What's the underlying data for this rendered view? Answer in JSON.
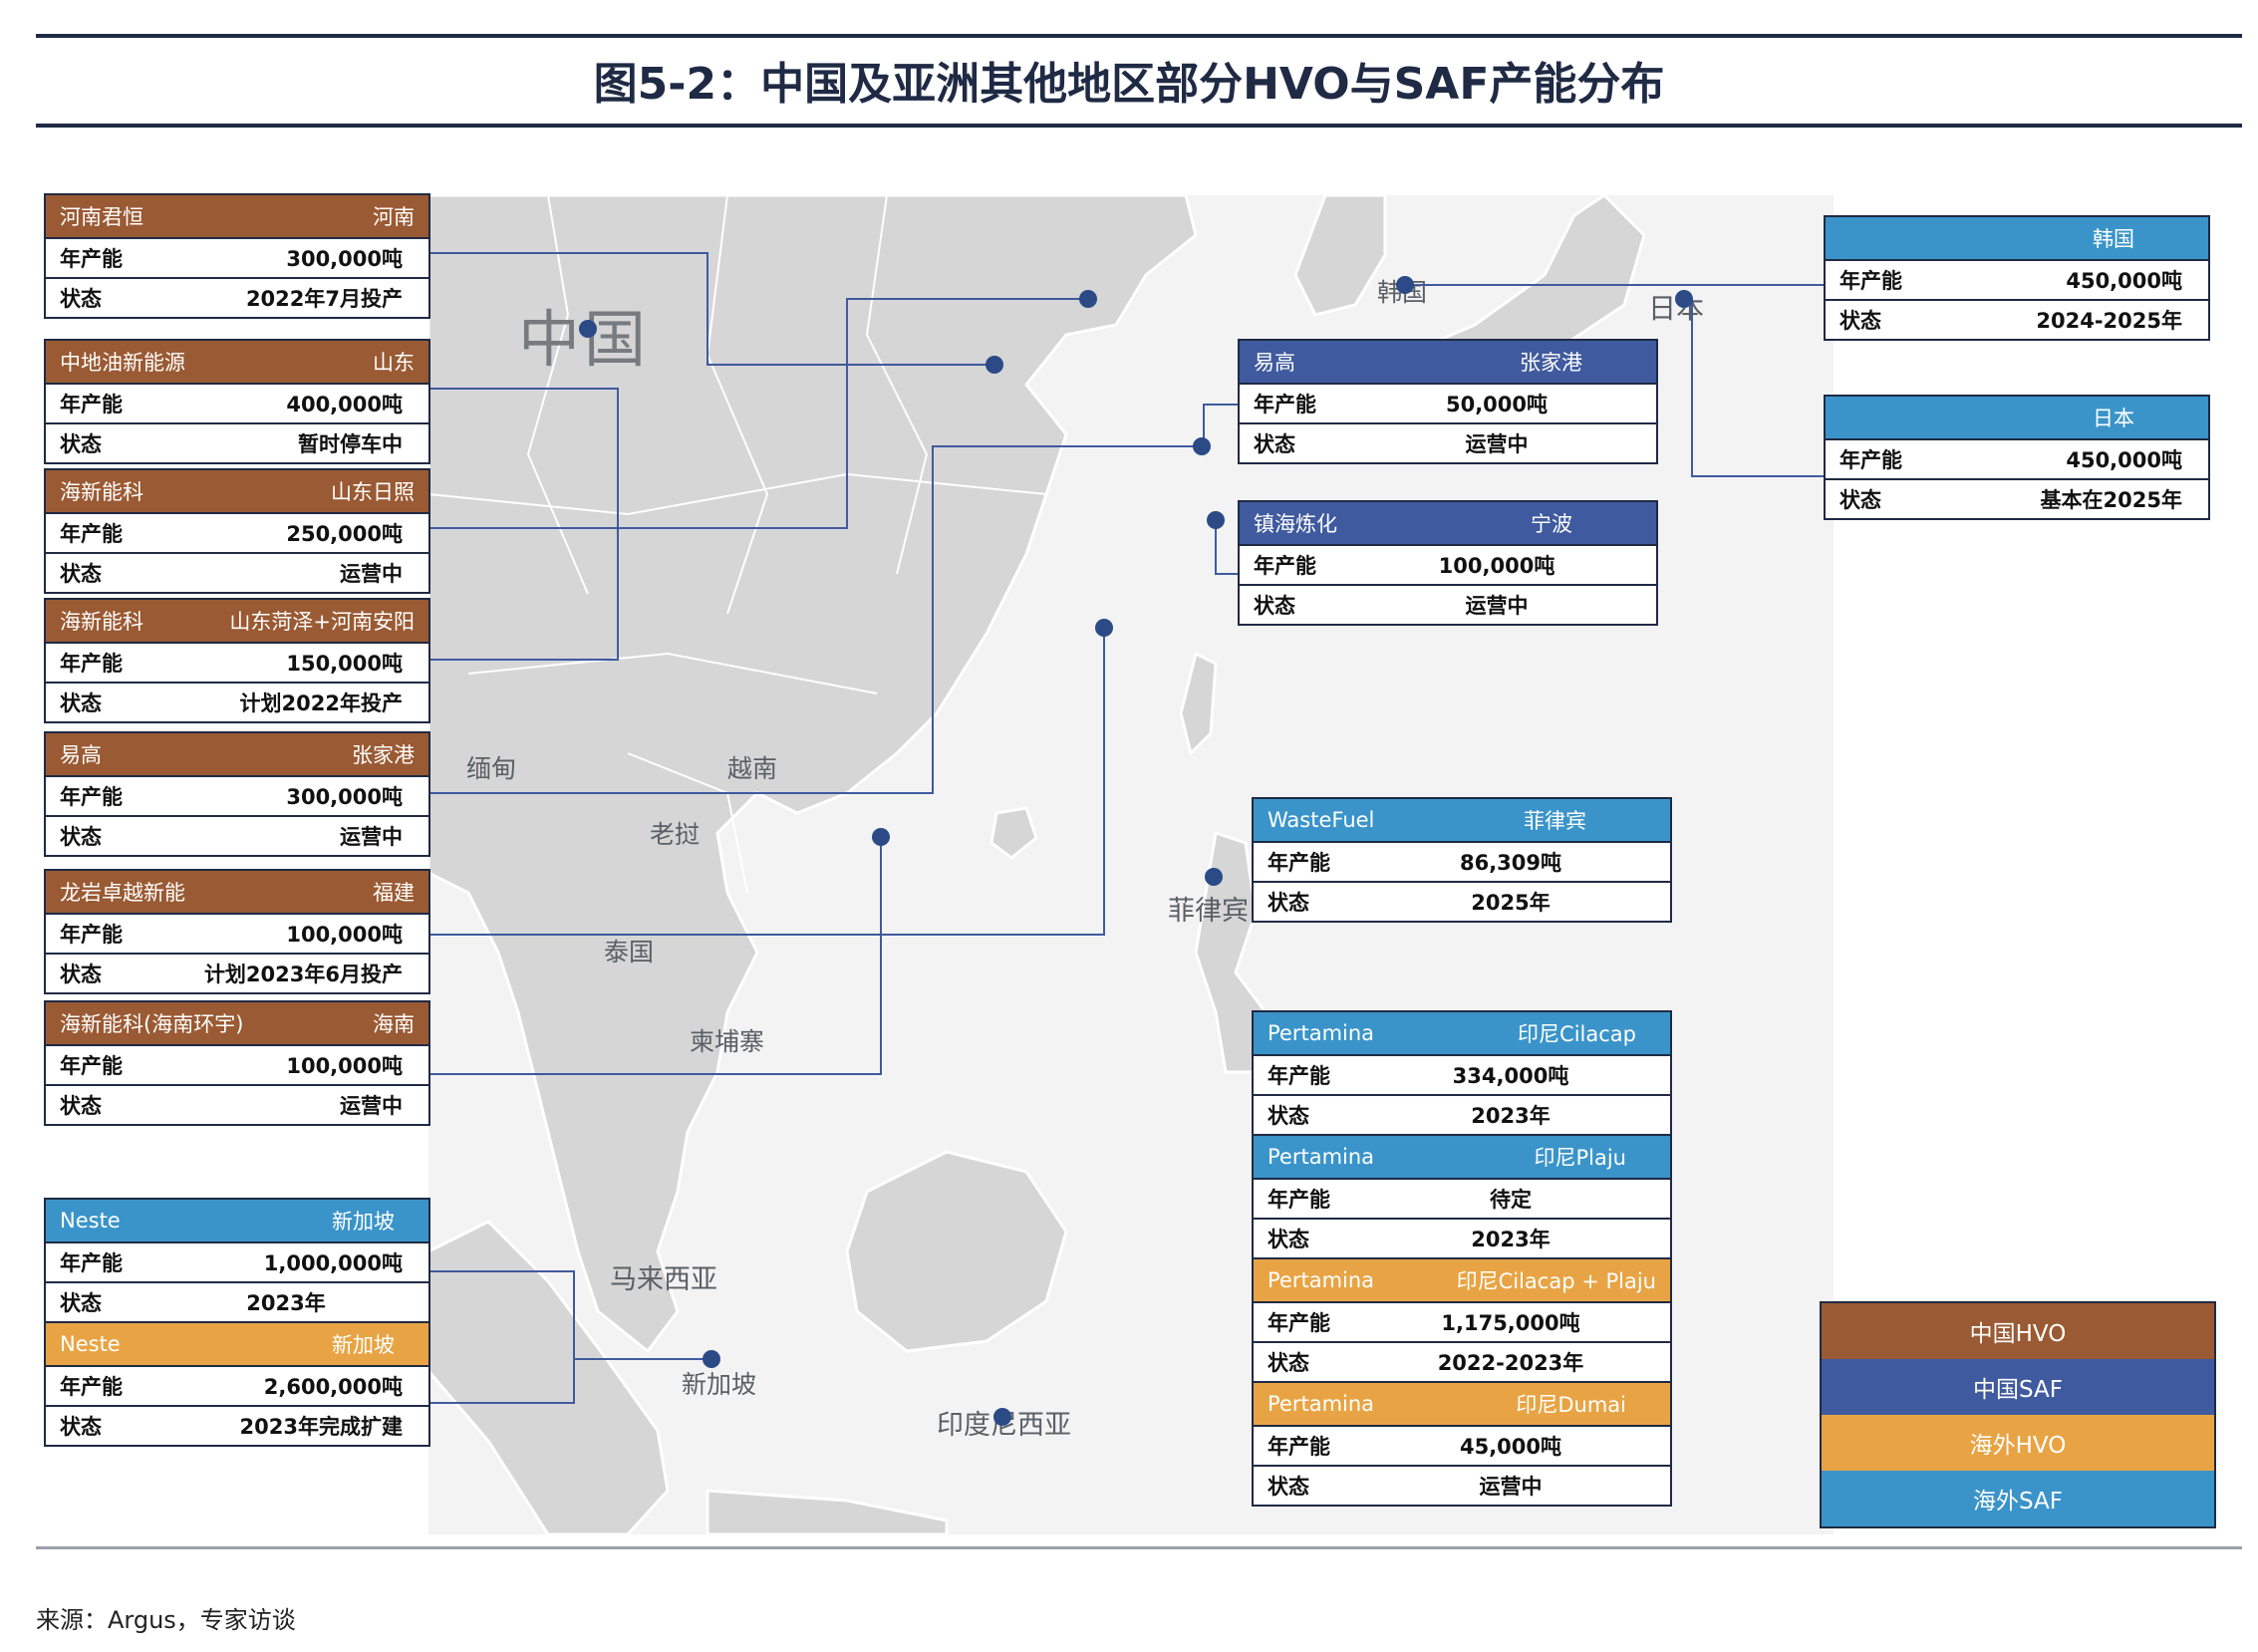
{
  "title": "图5-2：中国及亚洲其他地区部分HVO与SAF产能分布",
  "source": "来源：Argus，专家访谈",
  "row_labels": {
    "capacity": "年产能",
    "status": "状态"
  },
  "colors": {
    "china_hvo": "#9a5a33",
    "china_saf": "#3f5a9e",
    "overseas_hvo": "#e8a444",
    "overseas_saf": "#3a94c9"
  },
  "map_labels": {
    "china": "中国",
    "korea": "韩国",
    "japan": "日本",
    "myanmar": "缅甸",
    "laos": "老挝",
    "vietnam": "越南",
    "thailand": "泰国",
    "cambodia": "柬埔寨",
    "philippines": "菲律宾",
    "malaysia": "马来西亚",
    "singapore": "新加坡",
    "indonesia": "印度尼西亚"
  },
  "china_hvo_cards": [
    {
      "company": "河南君恒",
      "location": "河南",
      "capacity": "300,000吨",
      "status": "2022年7月投产"
    },
    {
      "company": "中地油新能源",
      "location": "山东",
      "capacity": "400,000吨",
      "status": "暂时停车中"
    },
    {
      "company": "海新能科",
      "location": "山东日照",
      "capacity": "250,000吨",
      "status": "运营中"
    },
    {
      "company": "海新能科",
      "location": "山东菏泽+河南安阳",
      "capacity": "150,000吨",
      "status": "计划2022年投产"
    },
    {
      "company": "易高",
      "location": "张家港",
      "capacity": "300,000吨",
      "status": "运营中"
    },
    {
      "company": "龙岩卓越新能",
      "location": "福建",
      "capacity": "100,000吨",
      "status": "计划2023年6月投产"
    },
    {
      "company": "海新能科(海南环宇)",
      "location": "海南",
      "capacity": "100,000吨",
      "status": "运营中"
    }
  ],
  "china_saf_cards": [
    {
      "company": "易高",
      "location": "张家港",
      "capacity": "50,000吨",
      "status": "运营中"
    },
    {
      "company": "镇海炼化",
      "location": "宁波",
      "capacity": "100,000吨",
      "status": "运营中"
    }
  ],
  "korea_card": {
    "company": "",
    "location": "韩国",
    "capacity": "450,000吨",
    "status": "2024-2025年"
  },
  "japan_card": {
    "company": "",
    "location": "日本",
    "capacity": "450,000吨",
    "status": "基本在2025年"
  },
  "philippines_card": {
    "company": "WasteFuel",
    "location": "菲律宾",
    "capacity": "86,309吨",
    "status": "2025年"
  },
  "indonesia_cards": [
    {
      "company": "Pertamina",
      "location": "印尼Cilacap",
      "capacity": "334,000吨",
      "status": "2023年",
      "kind": "saf"
    },
    {
      "company": "Pertamina",
      "location": "印尼Plaju",
      "capacity": "待定",
      "status": "2023年",
      "kind": "saf"
    },
    {
      "company": "Pertamina",
      "location": "印尼Cilacap + Plaju",
      "capacity": "1,175,000吨",
      "status": "2022-2023年",
      "kind": "hvo"
    },
    {
      "company": "Pertamina",
      "location": "印尼Dumai",
      "capacity": "45,000吨",
      "status": "运营中",
      "kind": "hvo"
    }
  ],
  "singapore_cards": [
    {
      "company": "Neste",
      "location": "新加坡",
      "capacity": "1,000,000吨",
      "status": "2023年",
      "kind": "saf"
    },
    {
      "company": "Neste",
      "location": "新加坡",
      "capacity": "2,600,000吨",
      "status": "2023年完成扩建",
      "kind": "hvo"
    }
  ],
  "legend": [
    "中国HVO",
    "中国SAF",
    "海外HVO",
    "海外SAF"
  ]
}
